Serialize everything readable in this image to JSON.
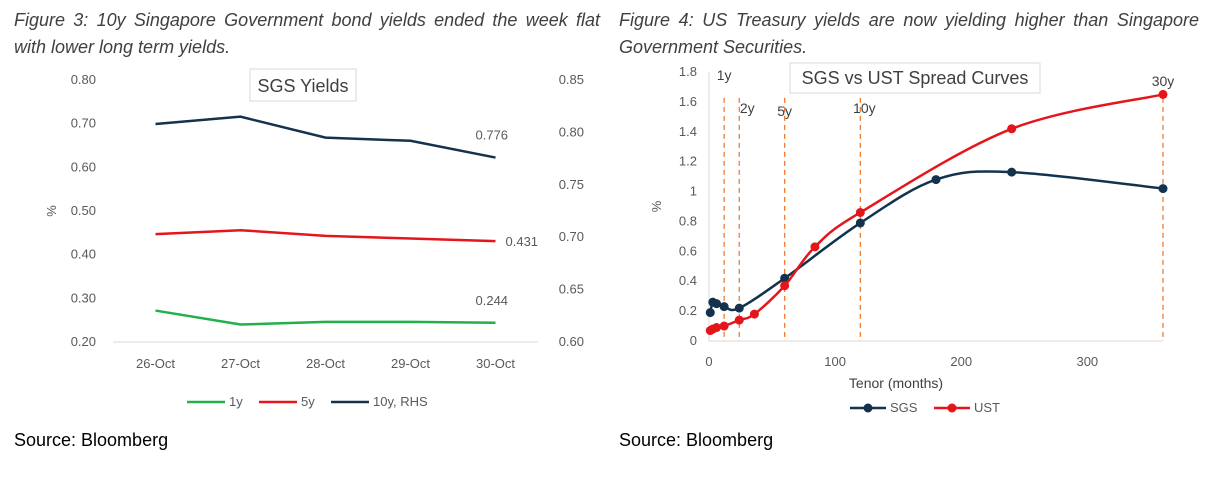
{
  "figures": {
    "fig1_title": "Figure 3: 10y Singapore Government bond yields ended the week flat with lower long term yields.",
    "fig2_title": "Figure 4: US Treasury yields are now yielding higher than Singapore Government Securities.",
    "source1": "Source: Bloomberg",
    "source2": "Source: Bloomberg"
  },
  "chart_data": [
    {
      "type": "line",
      "title": "SGS Yields",
      "ylabel": "%",
      "categories": [
        "26-Oct",
        "27-Oct",
        "28-Oct",
        "29-Oct",
        "30-Oct"
      ],
      "ylim": [
        0.2,
        0.8
      ],
      "yticks": [
        "0.20",
        "0.30",
        "0.40",
        "0.50",
        "0.60",
        "0.70",
        "0.80"
      ],
      "y2lim": [
        0.6,
        0.85
      ],
      "y2ticks": [
        "0.60",
        "0.65",
        "0.70",
        "0.75",
        "0.80",
        "0.85"
      ],
      "series": [
        {
          "name": "1y",
          "axis": "left",
          "color": "#22b04b",
          "values": [
            0.272,
            0.24,
            0.246,
            0.246,
            0.244
          ]
        },
        {
          "name": "5y",
          "axis": "left",
          "color": "#e4161b",
          "values": [
            0.447,
            0.456,
            0.443,
            0.437,
            0.431
          ]
        },
        {
          "name": "10y, RHS",
          "axis": "right",
          "color": "#13324d",
          "values": [
            0.808,
            0.815,
            0.795,
            0.792,
            0.776
          ]
        }
      ],
      "data_labels": [
        {
          "series": "10y, RHS",
          "index": 4,
          "text": "0.776"
        },
        {
          "series": "5y",
          "index": 4,
          "text": "0.431"
        },
        {
          "series": "1y",
          "index": 4,
          "text": "0.244"
        }
      ],
      "legend": "bottom",
      "grid": false
    },
    {
      "type": "line",
      "title": "SGS vs UST Spread Curves",
      "xlabel": "Tenor (months)",
      "ylabel": "%",
      "xlim": [
        0,
        360
      ],
      "xticks": [
        "0",
        "100",
        "200",
        "300"
      ],
      "ylim": [
        0,
        1.8
      ],
      "yticks": [
        "0",
        "0.2",
        "0.4",
        "0.6",
        "0.8",
        "1",
        "1.2",
        "1.4",
        "1.6",
        "1.8"
      ],
      "series": [
        {
          "name": "SGS",
          "color": "#13324d",
          "x": [
            1,
            3,
            6,
            12,
            24,
            60,
            120,
            180,
            240,
            360
          ],
          "y": [
            0.19,
            0.26,
            0.25,
            0.23,
            0.22,
            0.42,
            0.79,
            1.08,
            1.13,
            1.02
          ]
        },
        {
          "name": "UST",
          "color": "#e4161b",
          "x": [
            1,
            3,
            6,
            12,
            24,
            36,
            60,
            84,
            120,
            240,
            360
          ],
          "y": [
            0.07,
            0.08,
            0.09,
            0.1,
            0.14,
            0.18,
            0.37,
            0.63,
            0.86,
            1.42,
            1.65
          ]
        }
      ],
      "tenor_markers": [
        {
          "label": "1y",
          "x": 12
        },
        {
          "label": "2y",
          "x": 24
        },
        {
          "label": "5y",
          "x": 60
        },
        {
          "label": "10y",
          "x": 120
        },
        {
          "label": "30y",
          "x": 360
        }
      ],
      "legend": "bottom",
      "grid": false
    }
  ]
}
